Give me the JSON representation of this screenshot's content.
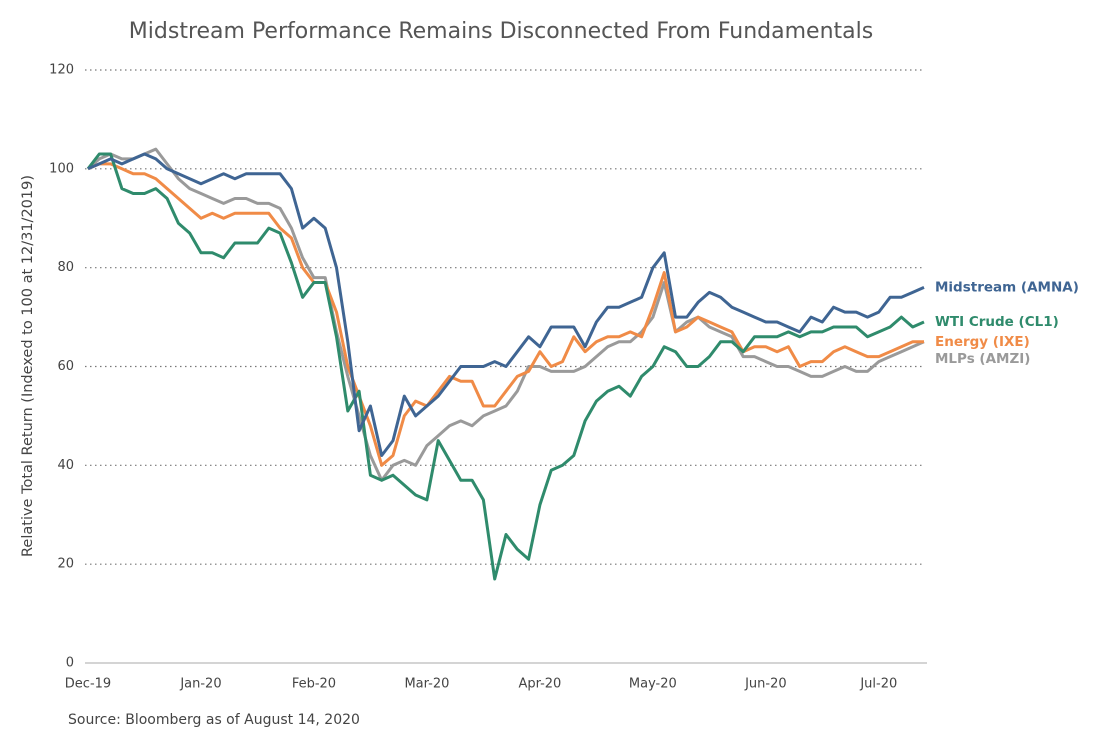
{
  "chart_data": {
    "type": "line",
    "title": "Midstream Performance Remains Disconnected From Fundamentals",
    "y_label": "Relative Total Return (Indexed to 100 at 12/31/2019)",
    "source": "Source: Bloomberg as of August 14, 2020",
    "categories": [
      "Dec-19",
      null,
      null,
      null,
      null,
      null,
      null,
      null,
      null,
      null,
      "Jan-20",
      null,
      null,
      null,
      null,
      null,
      null,
      null,
      null,
      null,
      "Feb-20",
      null,
      null,
      null,
      null,
      null,
      null,
      null,
      null,
      null,
      "Mar-20",
      null,
      null,
      null,
      null,
      null,
      null,
      null,
      null,
      null,
      "Apr-20",
      null,
      null,
      null,
      null,
      null,
      null,
      null,
      null,
      null,
      "May-20",
      null,
      null,
      null,
      null,
      null,
      null,
      null,
      null,
      null,
      "Jun-20",
      null,
      null,
      null,
      null,
      null,
      null,
      null,
      null,
      null,
      "Jul-20",
      null,
      null,
      null,
      null
    ],
    "ylim": [
      0,
      120
    ],
    "yticks": [
      0,
      20,
      40,
      60,
      80,
      100,
      120
    ],
    "grid": true,
    "series": [
      {
        "name": "Midstream (AMNA)",
        "color": "#3f6593",
        "values": [
          100,
          101,
          102,
          101,
          102,
          103,
          102,
          100,
          99,
          98,
          97,
          98,
          99,
          98,
          99,
          99,
          99,
          99,
          96,
          88,
          90,
          88,
          80,
          65,
          47,
          52,
          42,
          45,
          54,
          50,
          52,
          54,
          57,
          60,
          60,
          60,
          61,
          60,
          63,
          66,
          64,
          68,
          68,
          68,
          64,
          69,
          72,
          72,
          73,
          74,
          80,
          83,
          70,
          70,
          73,
          75,
          74,
          72,
          71,
          70,
          69,
          69,
          68,
          67,
          70,
          69,
          72,
          71,
          71,
          70,
          71,
          74,
          74,
          75,
          76
        ]
      },
      {
        "name": "WTI Crude (CL1)",
        "color": "#2f8b6c",
        "values": [
          100,
          103,
          103,
          96,
          95,
          95,
          96,
          94,
          89,
          87,
          83,
          83,
          82,
          85,
          85,
          85,
          88,
          87,
          81,
          74,
          77,
          77,
          66,
          51,
          55,
          38,
          37,
          38,
          36,
          34,
          33,
          45,
          41,
          37,
          37,
          33,
          17,
          26,
          23,
          21,
          32,
          39,
          40,
          42,
          49,
          53,
          55,
          56,
          54,
          58,
          60,
          64,
          63,
          60,
          60,
          62,
          65,
          65,
          63,
          66,
          66,
          66,
          67,
          66,
          67,
          67,
          68,
          68,
          68,
          66,
          67,
          68,
          70,
          68,
          69
        ]
      },
      {
        "name": "Energy (IXE)",
        "color": "#f08b47",
        "values": [
          100,
          101,
          101,
          100,
          99,
          99,
          98,
          96,
          94,
          92,
          90,
          91,
          90,
          91,
          91,
          91,
          91,
          88,
          86,
          80,
          77,
          77,
          71,
          60,
          54,
          48,
          40,
          42,
          50,
          53,
          52,
          55,
          58,
          57,
          57,
          52,
          52,
          55,
          58,
          59,
          63,
          60,
          61,
          66,
          63,
          65,
          66,
          66,
          67,
          66,
          72,
          79,
          67,
          68,
          70,
          69,
          68,
          67,
          63,
          64,
          64,
          63,
          64,
          60,
          61,
          61,
          63,
          64,
          63,
          62,
          62,
          63,
          64,
          65,
          65
        ]
      },
      {
        "name": "MLPs (AMZI)",
        "color": "#9a9a9a",
        "values": [
          100,
          102,
          103,
          102,
          102,
          103,
          104,
          101,
          98,
          96,
          95,
          94,
          93,
          94,
          94,
          93,
          93,
          92,
          88,
          82,
          78,
          78,
          67,
          58,
          50,
          42,
          37,
          40,
          41,
          40,
          44,
          46,
          48,
          49,
          48,
          50,
          51,
          52,
          55,
          60,
          60,
          59,
          59,
          59,
          60,
          62,
          64,
          65,
          65,
          67,
          70,
          77,
          67,
          69,
          70,
          68,
          67,
          66,
          62,
          62,
          61,
          60,
          60,
          59,
          58,
          58,
          59,
          60,
          59,
          59,
          61,
          62,
          63,
          64,
          65
        ]
      }
    ]
  }
}
